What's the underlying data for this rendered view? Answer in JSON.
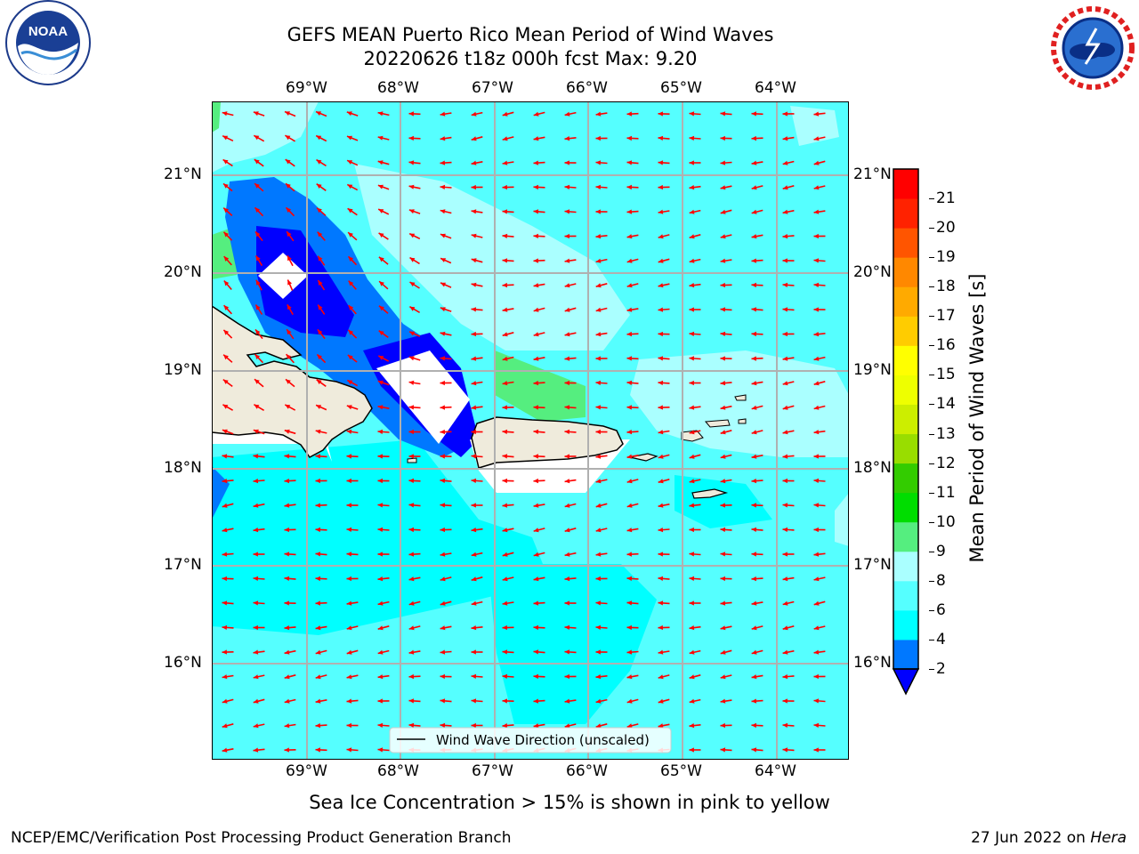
{
  "header": {
    "title_line1": "GEFS MEAN Puerto Rico Mean Period of Wind Waves",
    "title_line2": "20220626 t18z 000h fcst   Max: 9.20"
  },
  "logos": {
    "noaa_text": "NOAA",
    "noaa_ring": "NATIONAL OCEANIC AND ATMOSPHERIC ADMINISTRATION · U.S. DEPARTMENT OF COMMERCE",
    "nws_ring": "NATIONAL WEATHER SERVICE"
  },
  "map": {
    "lon_labels": [
      "69°W",
      "68°W",
      "67°W",
      "66°W",
      "65°W",
      "64°W"
    ],
    "lat_labels": [
      "21°N",
      "20°N",
      "19°N",
      "18°N",
      "17°N",
      "16°N"
    ],
    "legend_label": "Wind Wave Direction (unscaled)",
    "ocean_color": "#55ffff",
    "land_color": "#efebdc",
    "arrow_color": "#ff0000"
  },
  "colorbar": {
    "label": "Mean Period of Wind Waves [s]",
    "ticks": [
      "2",
      "4",
      "6",
      "8",
      "9",
      "10",
      "11",
      "12",
      "13",
      "14",
      "15",
      "16",
      "17",
      "18",
      "19",
      "20",
      "21"
    ],
    "colors": [
      "#0000ff",
      "#0078ff",
      "#00ffff",
      "#55ffff",
      "#aaffff",
      "#55ee7f",
      "#00dd00",
      "#33cc00",
      "#99dd00",
      "#ccee00",
      "#eeff00",
      "#ffff00",
      "#ffcc00",
      "#ffaa00",
      "#ff8800",
      "#ff5500",
      "#ff2200",
      "#ff0000"
    ]
  },
  "caption": "Sea Ice Concentration > 15% is shown in pink to yellow",
  "footer": {
    "left": "NCEP/EMC/Verification Post Processing Product Generation Branch",
    "right_prefix": "27 Jun 2022 on ",
    "right_host": "Hera"
  }
}
